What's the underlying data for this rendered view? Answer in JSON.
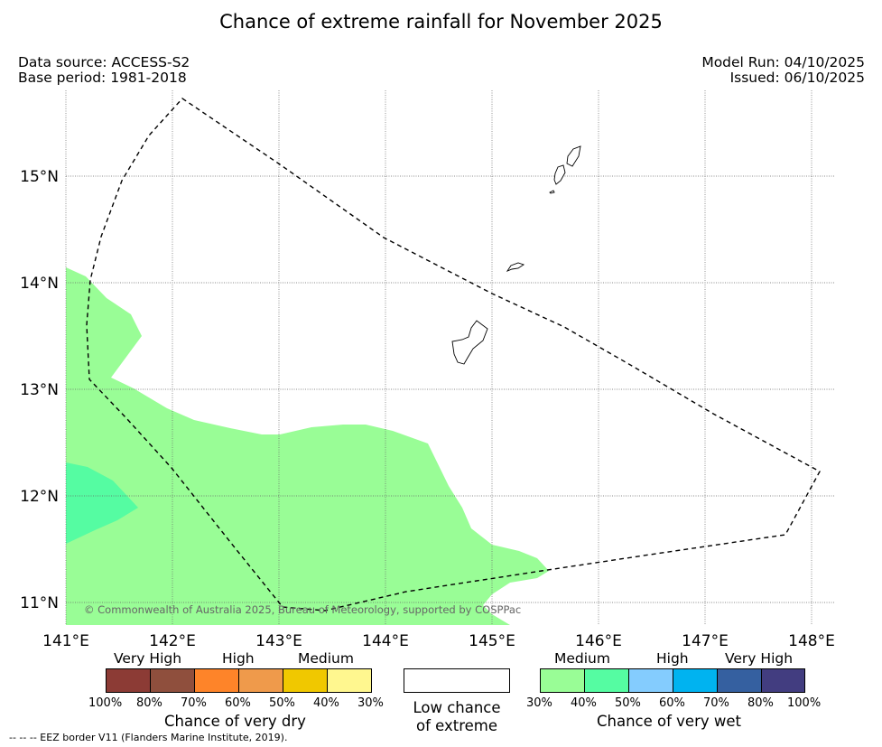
{
  "title": "Chance of extreme rainfall for November 2025",
  "meta": {
    "data_source": "Data source: ACCESS-S2",
    "base_period": "Base period: 1981-2018",
    "model_run": "Model Run: 04/10/2025",
    "issued": "Issued: 06/10/2025"
  },
  "map": {
    "lat_labels": [
      "15°N",
      "14°N",
      "13°N",
      "12°N",
      "11°N"
    ],
    "lon_labels": [
      "141°E",
      "142°E",
      "143°E",
      "144°E",
      "145°E",
      "146°E",
      "147°E",
      "148°E"
    ],
    "copyright": "© Commonwealth of Australia 2025, Bureau of Meteorology, supported by COSPPac",
    "colors": {
      "wet_medium": "#99fd96",
      "wet_medium_high": "#55fca2",
      "land_outline": "#000000",
      "eez_border": "#000000"
    }
  },
  "legend_dry": {
    "title": "Chance of very dry",
    "headers": [
      "Very High",
      "High",
      "Medium"
    ],
    "ticks": [
      "100%",
      "80%",
      "70%",
      "60%",
      "50%",
      "40%",
      "30%"
    ],
    "colors": [
      "#8c3b35",
      "#8f4f3d",
      "#fe8429",
      "#ef9a4b",
      "#f0c800",
      "#fff78f"
    ]
  },
  "legend_low": {
    "line1": "Low chance",
    "line2": "of extreme"
  },
  "legend_wet": {
    "title": "Chance of very wet",
    "headers": [
      "Medium",
      "High",
      "Very High"
    ],
    "ticks": [
      "30%",
      "40%",
      "50%",
      "60%",
      "70%",
      "80%",
      "100%"
    ],
    "colors": [
      "#99fd96",
      "#55fca2",
      "#84ccfe",
      "#00b3f0",
      "#3560a0",
      "#423d80"
    ]
  },
  "footnote": "-- -- -- EEZ border V11 (Flanders Marine Institute, 2019)."
}
